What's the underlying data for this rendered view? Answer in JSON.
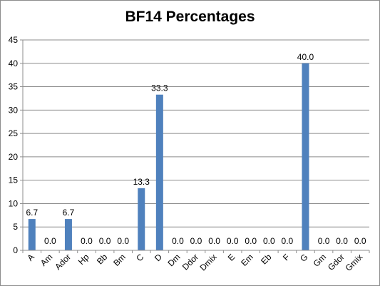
{
  "chart_data": {
    "type": "bar",
    "title": "BF14 Percentages",
    "xlabel": "",
    "ylabel": "",
    "categories": [
      "A",
      "Am",
      "Ador",
      "Hp",
      "Bb",
      "Bm",
      "C",
      "D",
      "Dm",
      "Ddor",
      "Dmix",
      "E",
      "Em",
      "Eb",
      "F",
      "G",
      "Gm",
      "Gdor",
      "Gmix"
    ],
    "values": [
      6.7,
      0.0,
      6.7,
      0.0,
      0.0,
      0.0,
      13.3,
      33.3,
      0.0,
      0.0,
      0.0,
      0.0,
      0.0,
      0.0,
      0.0,
      40.0,
      0.0,
      0.0,
      0.0
    ],
    "data_labels": [
      "6.7",
      "0.0",
      "6.7",
      "0.0",
      "0.0",
      "0.0",
      "13.3",
      "33.3",
      "0.0",
      "0.0",
      "0.0",
      "0.0",
      "0.0",
      "0.0",
      "0.0",
      "40.0",
      "0.0",
      "0.0",
      "0.0"
    ],
    "ylim": [
      0,
      45
    ],
    "yticks": [
      "0",
      "5",
      "10",
      "15",
      "20",
      "25",
      "30",
      "35",
      "40",
      "45"
    ],
    "grid": true,
    "legend": "none",
    "bar_color": "#4f81bd",
    "grid_color": "#8c8c8c"
  }
}
